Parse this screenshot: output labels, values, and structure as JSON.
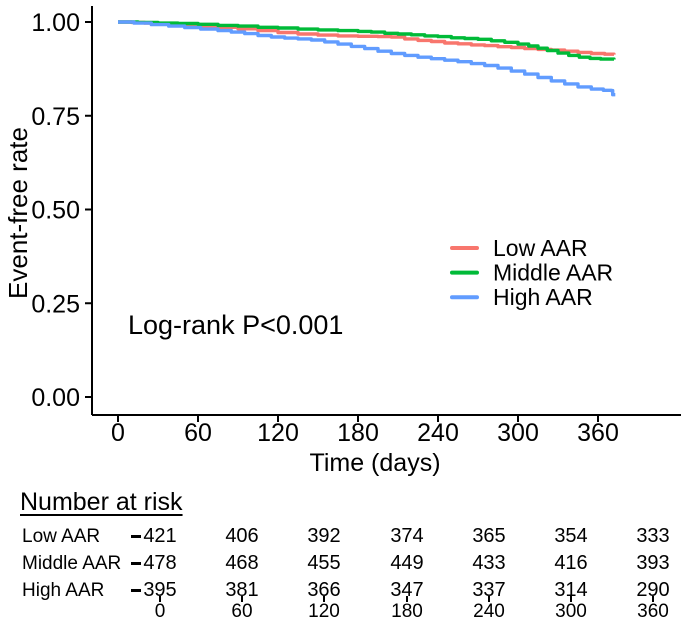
{
  "chart_data": {
    "type": "line",
    "subtype": "kaplan_meier_step",
    "title": "",
    "xlabel": "Time (days)",
    "ylabel": "Event-free rate",
    "annotation": "Log-rank P<0.001",
    "xlim": [
      0,
      390
    ],
    "ylim": [
      0,
      1.0
    ],
    "grid": false,
    "legend_position": "inside-right-middle",
    "xticks": [
      {
        "value": 0,
        "label": "0"
      },
      {
        "value": 60,
        "label": "60"
      },
      {
        "value": 120,
        "label": "120"
      },
      {
        "value": 180,
        "label": "180"
      },
      {
        "value": 240,
        "label": "240"
      },
      {
        "value": 300,
        "label": "300"
      },
      {
        "value": 360,
        "label": "360"
      }
    ],
    "yticks": [
      {
        "value": 0.0,
        "label": "0.00"
      },
      {
        "value": 0.25,
        "label": "0.25"
      },
      {
        "value": 0.5,
        "label": "0.50"
      },
      {
        "value": 0.75,
        "label": "0.75"
      },
      {
        "value": 1.0,
        "label": "1.00"
      }
    ],
    "series": [
      {
        "name": "Low AAR",
        "color": "#F8766D",
        "points": [
          [
            0,
            1.0
          ],
          [
            10,
            0.999
          ],
          [
            20,
            0.997
          ],
          [
            30,
            0.995
          ],
          [
            45,
            0.992
          ],
          [
            60,
            0.99
          ],
          [
            75,
            0.986
          ],
          [
            90,
            0.982
          ],
          [
            105,
            0.977
          ],
          [
            120,
            0.972
          ],
          [
            135,
            0.968
          ],
          [
            150,
            0.965
          ],
          [
            165,
            0.963
          ],
          [
            180,
            0.962
          ],
          [
            195,
            0.961
          ],
          [
            205,
            0.96
          ],
          [
            215,
            0.955
          ],
          [
            225,
            0.951
          ],
          [
            235,
            0.948
          ],
          [
            245,
            0.944
          ],
          [
            255,
            0.942
          ],
          [
            265,
            0.939
          ],
          [
            275,
            0.937
          ],
          [
            285,
            0.934
          ],
          [
            295,
            0.932
          ],
          [
            305,
            0.929
          ],
          [
            315,
            0.927
          ],
          [
            325,
            0.925
          ],
          [
            335,
            0.922
          ],
          [
            345,
            0.919
          ],
          [
            355,
            0.916
          ],
          [
            365,
            0.914
          ],
          [
            372,
            0.913
          ]
        ]
      },
      {
        "name": "Middle AAR",
        "color": "#00BA38",
        "points": [
          [
            0,
            1.0
          ],
          [
            15,
            0.999
          ],
          [
            30,
            0.997
          ],
          [
            45,
            0.996
          ],
          [
            60,
            0.994
          ],
          [
            75,
            0.991
          ],
          [
            90,
            0.989
          ],
          [
            105,
            0.986
          ],
          [
            120,
            0.984
          ],
          [
            135,
            0.981
          ],
          [
            150,
            0.979
          ],
          [
            165,
            0.977
          ],
          [
            180,
            0.975
          ],
          [
            190,
            0.973
          ],
          [
            200,
            0.97
          ],
          [
            210,
            0.968
          ],
          [
            220,
            0.966
          ],
          [
            230,
            0.963
          ],
          [
            240,
            0.961
          ],
          [
            250,
            0.958
          ],
          [
            260,
            0.956
          ],
          [
            270,
            0.954
          ],
          [
            280,
            0.95
          ],
          [
            290,
            0.946
          ],
          [
            300,
            0.941
          ],
          [
            308,
            0.936
          ],
          [
            315,
            0.93
          ],
          [
            322,
            0.924
          ],
          [
            330,
            0.917
          ],
          [
            338,
            0.911
          ],
          [
            346,
            0.906
          ],
          [
            354,
            0.903
          ],
          [
            362,
            0.901
          ],
          [
            372,
            0.9
          ]
        ]
      },
      {
        "name": "High AAR",
        "color": "#619CFF",
        "points": [
          [
            0,
            1.0
          ],
          [
            12,
            0.997
          ],
          [
            25,
            0.993
          ],
          [
            38,
            0.989
          ],
          [
            50,
            0.985
          ],
          [
            62,
            0.981
          ],
          [
            75,
            0.977
          ],
          [
            85,
            0.973
          ],
          [
            95,
            0.969
          ],
          [
            105,
            0.964
          ],
          [
            115,
            0.96
          ],
          [
            125,
            0.957
          ],
          [
            135,
            0.955
          ],
          [
            145,
            0.952
          ],
          [
            155,
            0.947
          ],
          [
            165,
            0.941
          ],
          [
            175,
            0.935
          ],
          [
            185,
            0.929
          ],
          [
            195,
            0.922
          ],
          [
            205,
            0.916
          ],
          [
            215,
            0.911
          ],
          [
            225,
            0.906
          ],
          [
            235,
            0.902
          ],
          [
            245,
            0.898
          ],
          [
            255,
            0.894
          ],
          [
            265,
            0.889
          ],
          [
            275,
            0.884
          ],
          [
            285,
            0.877
          ],
          [
            295,
            0.869
          ],
          [
            305,
            0.861
          ],
          [
            315,
            0.852
          ],
          [
            325,
            0.843
          ],
          [
            335,
            0.835
          ],
          [
            345,
            0.827
          ],
          [
            355,
            0.821
          ],
          [
            364,
            0.818
          ],
          [
            370,
            0.817
          ],
          [
            371,
            0.806
          ],
          [
            373,
            0.806
          ]
        ]
      }
    ]
  },
  "risk_table": {
    "heading": "Number at risk",
    "time_points": [
      "0",
      "60",
      "120",
      "180",
      "240",
      "300",
      "360"
    ],
    "rows": [
      {
        "label": "Low AAR",
        "values": [
          "421",
          "406",
          "392",
          "374",
          "365",
          "354",
          "333"
        ]
      },
      {
        "label": "Middle AAR",
        "values": [
          "478",
          "468",
          "455",
          "449",
          "433",
          "416",
          "393"
        ]
      },
      {
        "label": "High AAR",
        "values": [
          "395",
          "381",
          "366",
          "347",
          "337",
          "314",
          "290"
        ]
      }
    ]
  },
  "colors": {
    "low_aar": "#F8766D",
    "middle_aar": "#00BA38",
    "high_aar": "#619CFF",
    "axis": "#000000",
    "text": "#000000",
    "background": "#ffffff"
  }
}
